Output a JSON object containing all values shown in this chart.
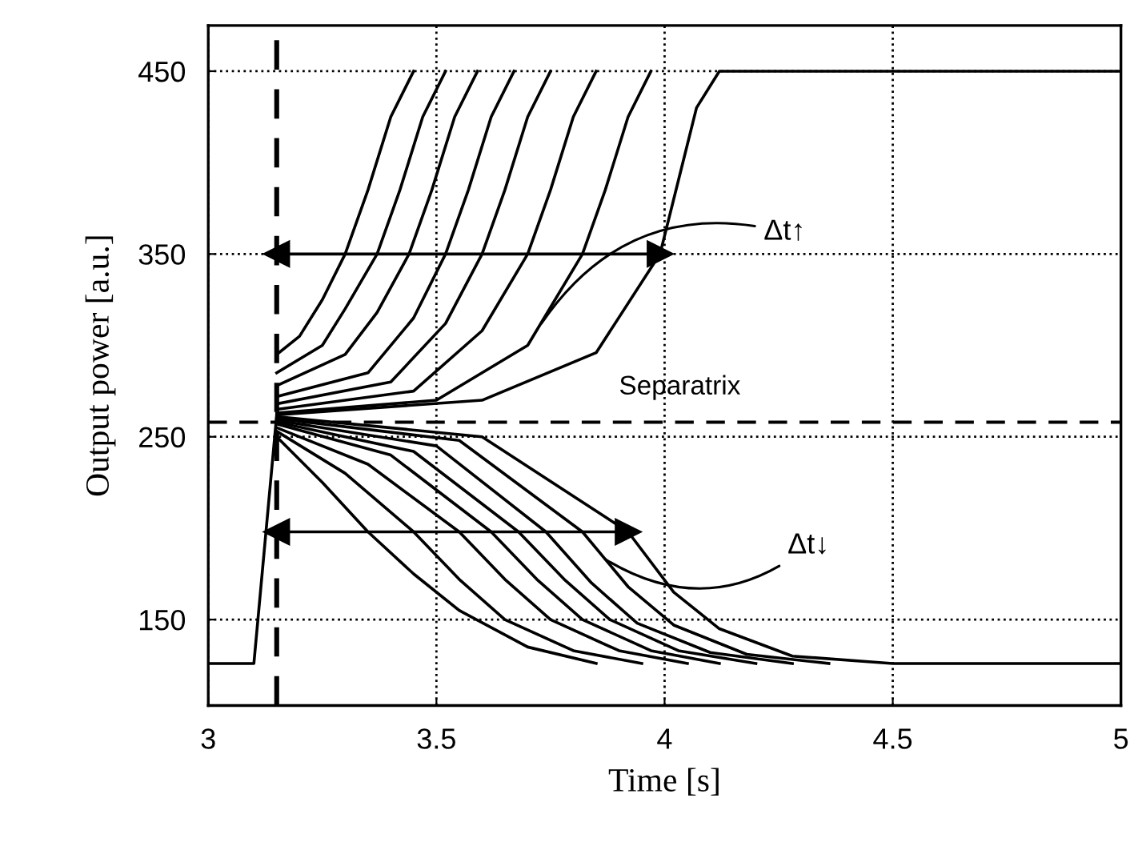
{
  "chart_data": {
    "type": "line",
    "xlabel": "Time [s]",
    "ylabel": "Output power [a.u.]",
    "xlim": [
      3,
      5
    ],
    "ylim": [
      103,
      475
    ],
    "xticks": [
      3,
      3.5,
      4,
      4.5,
      5
    ],
    "yticks": [
      150,
      250,
      350,
      450
    ],
    "grid": true,
    "line_style": "solid",
    "series": [
      {
        "color": "#000000",
        "x": [
          3,
          3.1,
          3.15
        ],
        "values": [
          126,
          126,
          262
        ]
      },
      {
        "color": "#000000",
        "x": [
          3.15,
          3.2,
          3.25,
          3.3,
          3.35,
          3.4,
          3.45
        ],
        "values": [
          295,
          305,
          325,
          350,
          385,
          425,
          450
        ]
      },
      {
        "color": "#000000",
        "x": [
          3.15,
          3.25,
          3.3,
          3.37,
          3.42,
          3.47,
          3.52
        ],
        "values": [
          285,
          300,
          320,
          350,
          385,
          425,
          450
        ]
      },
      {
        "color": "#000000",
        "x": [
          3.15,
          3.3,
          3.37,
          3.44,
          3.49,
          3.54,
          3.59
        ],
        "values": [
          278,
          295,
          318,
          350,
          385,
          425,
          450
        ]
      },
      {
        "color": "#000000",
        "x": [
          3.15,
          3.35,
          3.45,
          3.52,
          3.57,
          3.62,
          3.67
        ],
        "values": [
          272,
          285,
          315,
          350,
          385,
          425,
          450
        ]
      },
      {
        "color": "#000000",
        "x": [
          3.15,
          3.4,
          3.52,
          3.6,
          3.65,
          3.7,
          3.75
        ],
        "values": [
          268,
          280,
          312,
          350,
          385,
          425,
          450
        ]
      },
      {
        "color": "#000000",
        "x": [
          3.15,
          3.45,
          3.6,
          3.7,
          3.75,
          3.8,
          3.85
        ],
        "values": [
          265,
          275,
          308,
          350,
          385,
          425,
          450
        ]
      },
      {
        "color": "#000000",
        "x": [
          3.15,
          3.5,
          3.7,
          3.82,
          3.87,
          3.92,
          3.97
        ],
        "values": [
          263,
          270,
          300,
          350,
          385,
          425,
          450
        ]
      },
      {
        "color": "#000000",
        "x": [
          3.15,
          3.6,
          3.85,
          3.99,
          4.03,
          4.07,
          4.12,
          5
        ],
        "values": [
          262,
          270,
          296,
          350,
          390,
          430,
          450,
          450
        ]
      },
      {
        "color": "#000000",
        "x": [
          3.15,
          3.25,
          3.35,
          3.45,
          3.55,
          3.7,
          3.85
        ],
        "values": [
          250,
          225,
          198,
          175,
          155,
          135,
          126
        ]
      },
      {
        "color": "#000000",
        "x": [
          3.15,
          3.3,
          3.45,
          3.55,
          3.65,
          3.8,
          3.95
        ],
        "values": [
          253,
          230,
          198,
          172,
          150,
          133,
          126
        ]
      },
      {
        "color": "#000000",
        "x": [
          3.15,
          3.35,
          3.55,
          3.65,
          3.75,
          3.9,
          4.05
        ],
        "values": [
          255,
          235,
          198,
          172,
          150,
          133,
          126
        ]
      },
      {
        "color": "#000000",
        "x": [
          3.15,
          3.4,
          3.62,
          3.72,
          3.82,
          3.97,
          4.12
        ],
        "values": [
          257,
          240,
          198,
          172,
          150,
          133,
          126
        ]
      },
      {
        "color": "#000000",
        "x": [
          3.15,
          3.45,
          3.68,
          3.78,
          3.88,
          4.03,
          4.2
        ],
        "values": [
          258,
          242,
          198,
          172,
          150,
          133,
          126
        ]
      },
      {
        "color": "#000000",
        "x": [
          3.15,
          3.5,
          3.74,
          3.84,
          3.94,
          4.1,
          4.28
        ],
        "values": [
          259,
          245,
          198,
          170,
          148,
          132,
          126
        ]
      },
      {
        "color": "#000000",
        "x": [
          3.15,
          3.55,
          3.82,
          3.92,
          4.02,
          4.18,
          4.36
        ],
        "values": [
          260,
          248,
          198,
          168,
          147,
          131,
          126
        ]
      },
      {
        "color": "#000000",
        "x": [
          3.15,
          3.6,
          3.92,
          4.02,
          4.12,
          4.28,
          4.5,
          5
        ],
        "values": [
          261,
          250,
          198,
          165,
          145,
          130,
          126,
          126
        ]
      },
      {
        "color": "#000000",
        "x": [
          3.15,
          3.99
        ],
        "values": [
          350,
          350
        ],
        "marker": "triangle"
      },
      {
        "color": "#000000",
        "x": [
          3.15,
          3.92
        ],
        "values": [
          198,
          198
        ],
        "marker": "triangle"
      }
    ],
    "ref_lines": [
      {
        "axis": "y",
        "value": 258,
        "label": "Separatrix",
        "color": "#000000",
        "line_style": "dashed"
      },
      {
        "axis": "x",
        "value": 3.15,
        "color": "#000000",
        "line_style": "dashed"
      }
    ],
    "annotations": [
      {
        "text": "Δt↑",
        "x": 3.73,
        "y": 312
      },
      {
        "text": "Δt↓",
        "x": 3.87,
        "y": 183
      }
    ]
  }
}
